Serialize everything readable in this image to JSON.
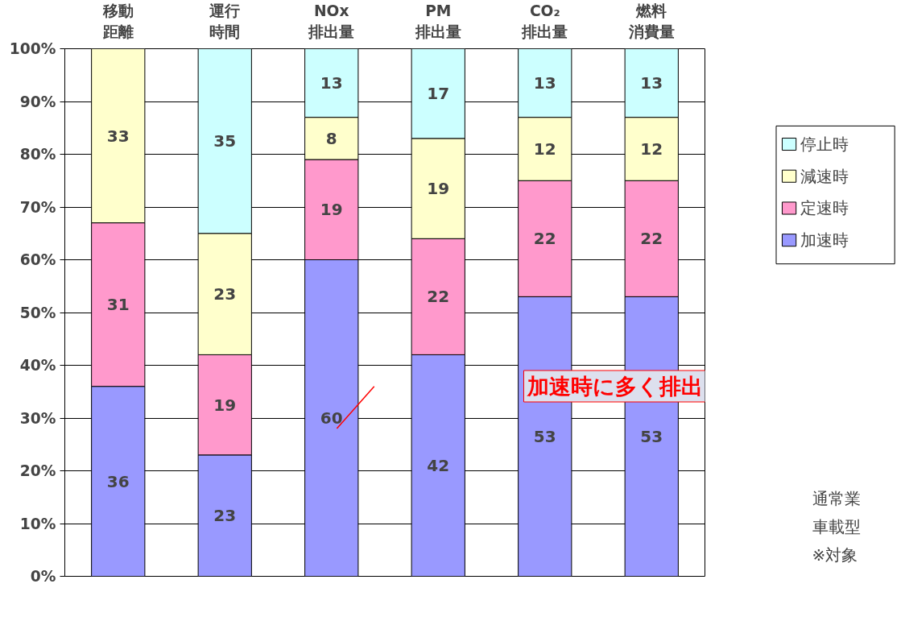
{
  "chart_data": {
    "type": "bar",
    "stacked": true,
    "categories": [
      "移動距離",
      "運行時間",
      "NOx\n排出量",
      "PM\n排出量",
      "CO₂\n排出量",
      "燃料消費量"
    ],
    "series": [
      {
        "name": "加速時",
        "color": "#9999ff",
        "values": [
          36,
          23,
          60,
          42,
          53,
          53
        ]
      },
      {
        "name": "定速時",
        "color": "#ff99cc",
        "values": [
          31,
          19,
          19,
          22,
          22,
          22
        ]
      },
      {
        "name": "減速時",
        "color": "#ffffcc",
        "values": [
          33,
          23,
          8,
          19,
          12,
          12
        ]
      },
      {
        "name": "停止時",
        "color": "#ccffff",
        "values": [
          0,
          35,
          13,
          17,
          13,
          13
        ],
        "value_labels": [
          null,
          "35",
          "13",
          "17",
          "13",
          "13"
        ]
      }
    ],
    "ylim": [
      0,
      100
    ],
    "yticks": [
      {
        "value": 0,
        "label": "0%"
      },
      {
        "value": 10,
        "label": "10%"
      },
      {
        "value": 20,
        "label": "20%"
      },
      {
        "value": 30,
        "label": "30%"
      },
      {
        "value": 40,
        "label": "40%"
      },
      {
        "value": 50,
        "label": "50%"
      },
      {
        "value": 60,
        "label": "60%"
      },
      {
        "value": 70,
        "label": "70%"
      },
      {
        "value": 80,
        "label": "80%"
      },
      {
        "value": 90,
        "label": "90%"
      },
      {
        "value": 100,
        "label": "100%"
      }
    ],
    "grid": "y",
    "legend": "right",
    "data_labels": true,
    "annotations": [
      "加速時に多く排出",
      "通常業",
      "車載型",
      "※対象"
    ]
  }
}
